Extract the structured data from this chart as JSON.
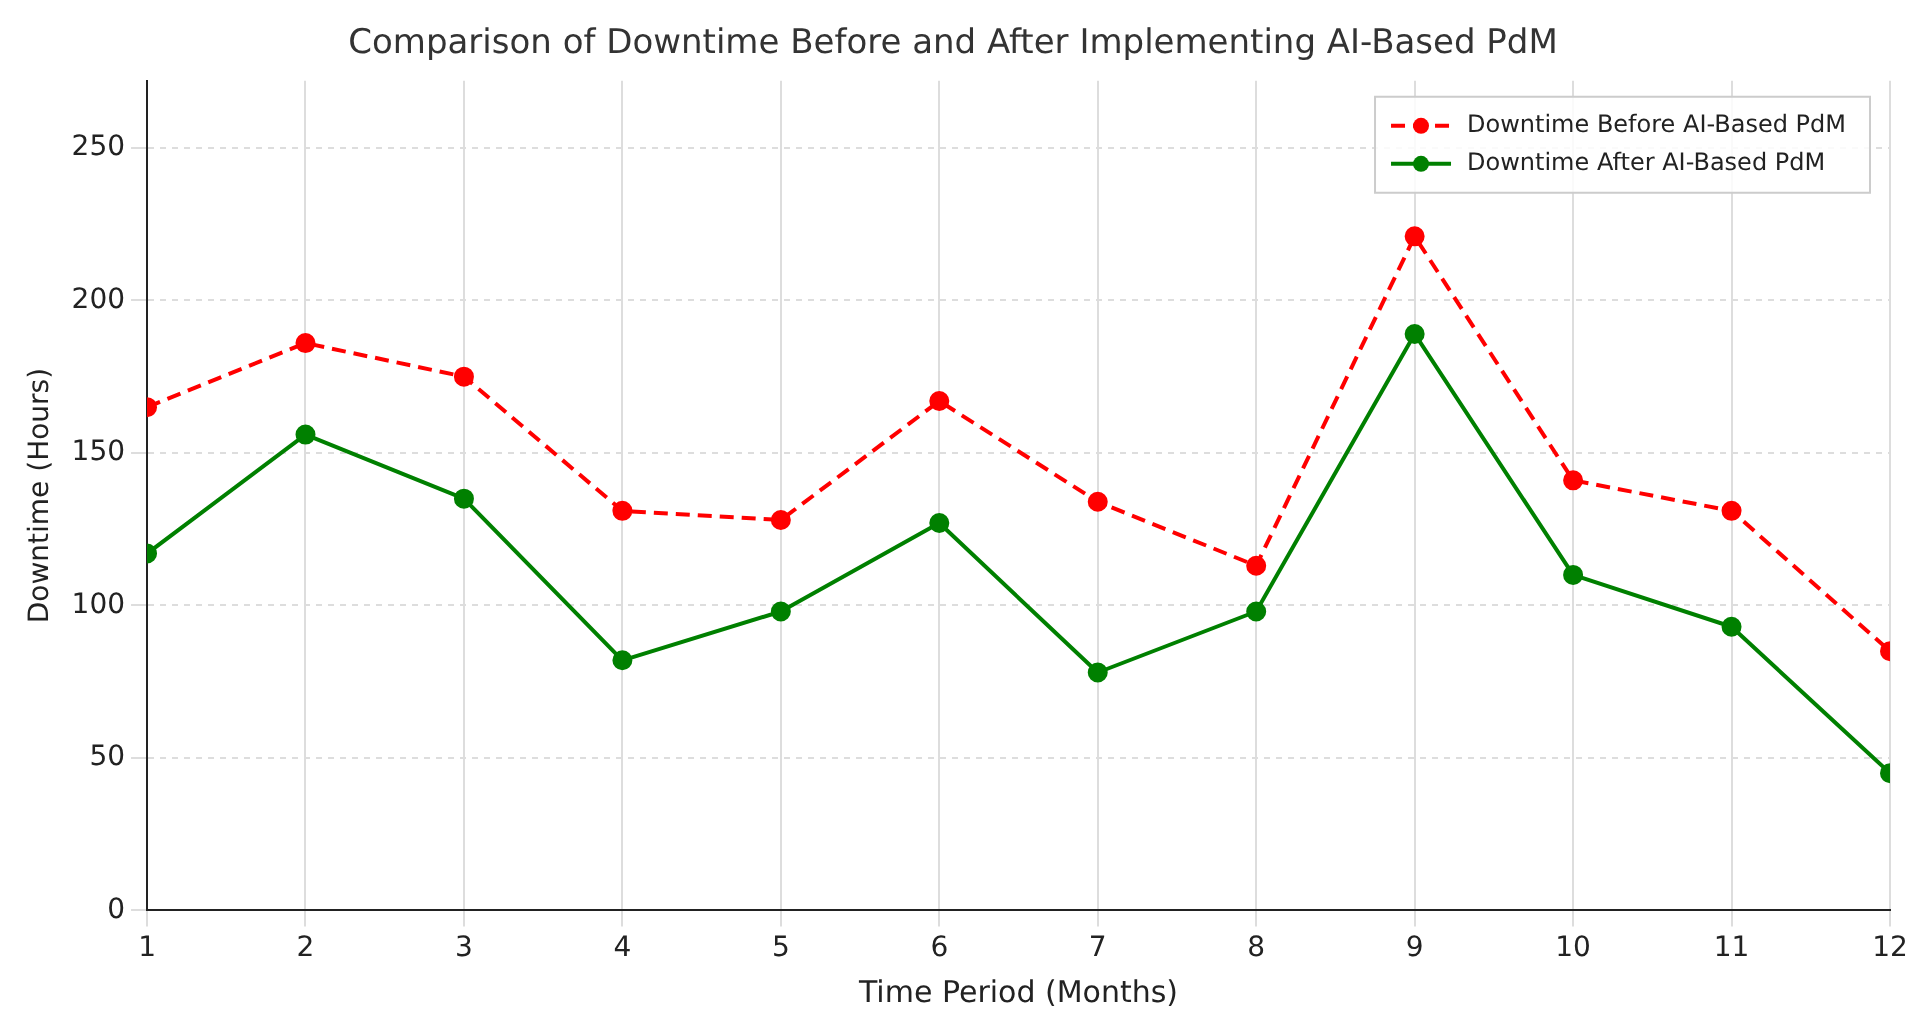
{
  "chart_data": {
    "type": "line",
    "title": "Comparison of Downtime Before and After Implementing AI-Based PdM",
    "xlabel": "Time Period (Months)",
    "ylabel": "Downtime (Hours)",
    "x": [
      1,
      2,
      3,
      4,
      5,
      6,
      7,
      8,
      9,
      10,
      11,
      12
    ],
    "series": [
      {
        "name": "Downtime Before AI-Based PdM",
        "color": "#ff0000",
        "line_style": "dashed",
        "values": [
          165,
          186,
          175,
          131,
          128,
          167,
          134,
          113,
          221,
          141,
          131,
          85
        ]
      },
      {
        "name": "Downtime After AI-Based PdM",
        "color": "#008000",
        "line_style": "solid",
        "values": [
          117,
          156,
          135,
          82,
          98,
          127,
          78,
          98,
          189,
          110,
          93,
          45
        ]
      }
    ],
    "xlim": [
      1,
      12
    ],
    "xticks": [
      1,
      2,
      3,
      4,
      5,
      6,
      7,
      8,
      9,
      10,
      11,
      12
    ],
    "ylim": [
      0,
      272
    ],
    "yticks": [
      0,
      50,
      100,
      150,
      200,
      250
    ],
    "grid": true,
    "legend": "top right",
    "marker": "circle"
  }
}
